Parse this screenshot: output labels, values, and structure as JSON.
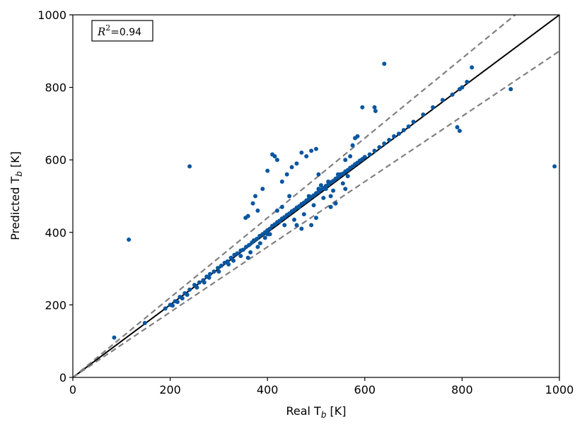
{
  "chart_data": {
    "type": "scatter",
    "xlabel": "Real T",
    "xlabel_sub": "b",
    "xlabel_unit": " [K]",
    "ylabel": "Predicted T",
    "ylabel_sub": "b",
    "ylabel_unit": " [K]",
    "xlim": [
      0,
      1000
    ],
    "ylim": [
      0,
      1000
    ],
    "xticks": [
      0,
      200,
      400,
      600,
      800,
      1000
    ],
    "yticks": [
      0,
      200,
      400,
      600,
      800,
      1000
    ],
    "grid": false,
    "annotation": {
      "r2_symbol": "R",
      "r2_exp": "2",
      "r2_eq": "=",
      "r2_value": "0.94"
    },
    "reference_lines": [
      {
        "style": "solid",
        "color": "#000000",
        "slope": 1.0
      },
      {
        "style": "dashed",
        "color": "#808080",
        "slope": 1.1
      },
      {
        "style": "dashed",
        "color": "#808080",
        "slope": 0.9
      }
    ],
    "point_color": "#0a56a0",
    "series": [
      {
        "x": [
          85,
          115,
          148,
          190,
          200,
          210,
          220,
          230,
          240,
          250,
          260,
          268,
          275,
          282,
          290,
          298,
          305,
          312,
          318,
          325,
          332,
          338,
          345,
          350,
          356,
          362,
          368,
          372,
          378,
          384,
          390,
          395,
          400,
          405,
          410,
          415,
          420,
          425,
          430,
          435,
          440,
          445,
          450,
          455,
          460,
          465,
          470,
          475,
          480,
          485,
          490,
          495,
          500,
          505,
          510,
          515,
          520,
          525,
          530,
          535,
          540,
          545,
          550,
          555,
          560,
          565,
          570,
          575,
          580,
          585,
          590,
          595,
          600,
          610,
          620,
          630,
          640,
          650,
          660,
          670,
          680,
          690,
          700,
          720,
          740,
          760,
          780,
          795,
          800,
          810,
          820,
          900,
          990,
          640,
          595,
          620,
          622,
          240,
          355,
          360,
          370,
          375,
          380,
          390,
          400,
          410,
          415,
          420,
          430,
          440,
          450,
          460,
          470,
          480,
          490,
          500,
          505,
          510,
          520,
          530,
          540,
          550,
          560,
          570,
          575,
          580,
          585,
          790,
          795,
          490,
          500,
          470,
          460,
          530,
          540,
          560,
          430,
          420,
          445,
          360,
          365,
          380,
          395,
          405,
          435,
          455,
          475,
          495,
          515,
          535,
          555,
          565,
          545,
          525,
          505,
          485,
          465,
          425,
          400,
          385,
          345,
          330,
          320,
          300,
          280,
          270,
          255,
          235,
          225,
          215,
          205
        ],
        "y": [
          110,
          380,
          150,
          190,
          200,
          210,
          222,
          232,
          242,
          255,
          262,
          268,
          278,
          285,
          292,
          302,
          308,
          316,
          320,
          330,
          338,
          342,
          350,
          352,
          360,
          365,
          372,
          378,
          382,
          390,
          395,
          400,
          406,
          410,
          418,
          422,
          428,
          432,
          438,
          442,
          448,
          452,
          458,
          462,
          468,
          472,
          478,
          482,
          488,
          492,
          498,
          502,
          508,
          512,
          518,
          522,
          528,
          532,
          538,
          542,
          548,
          552,
          558,
          562,
          568,
          572,
          578,
          582,
          588,
          592,
          598,
          602,
          608,
          615,
          625,
          635,
          645,
          655,
          665,
          672,
          682,
          692,
          705,
          725,
          745,
          765,
          780,
          795,
          800,
          815,
          855,
          795,
          582,
          865,
          745,
          745,
          735,
          582,
          440,
          445,
          480,
          500,
          460,
          520,
          570,
          615,
          610,
          600,
          540,
          560,
          580,
          590,
          620,
          610,
          625,
          630,
          560,
          530,
          520,
          500,
          480,
          560,
          600,
          610,
          640,
          660,
          665,
          690,
          680,
          420,
          440,
          410,
          420,
          470,
          480,
          520,
          470,
          460,
          500,
          330,
          345,
          360,
          385,
          395,
          420,
          435,
          450,
          475,
          495,
          515,
          535,
          555,
          560,
          540,
          520,
          500,
          470,
          430,
          395,
          370,
          335,
          322,
          312,
          292,
          275,
          262,
          248,
          228,
          218,
          208,
          198
        ]
      }
    ]
  }
}
